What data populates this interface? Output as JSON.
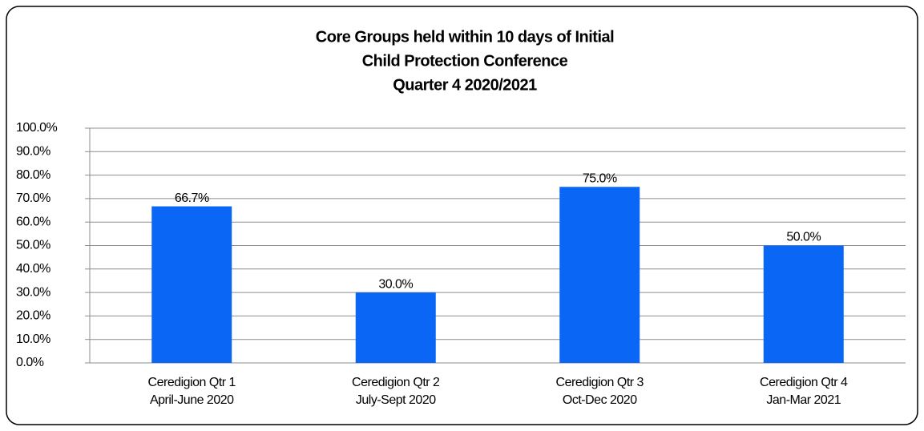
{
  "chart_data": {
    "type": "bar",
    "title": [
      "Core Groups held within 10 days of Initial",
      "Child Protection Conference",
      "Quarter 4 2020/2021"
    ],
    "categories": [
      [
        "Ceredigion Qtr 1",
        "April-June 2020"
      ],
      [
        "Ceredigion Qtr 2",
        "July-Sept 2020"
      ],
      [
        "Ceredigion Qtr 3",
        "Oct-Dec 2020"
      ],
      [
        "Ceredigion Qtr 4",
        "Jan-Mar 2021"
      ]
    ],
    "values": [
      66.7,
      30,
      75,
      50
    ],
    "value_labels": [
      "66.7%",
      "30.0%",
      "75.0%",
      "50.0%"
    ],
    "color": "#0a66f5",
    "ylim": [
      0,
      100
    ],
    "yticks": [
      {
        "value": 0,
        "label": "0.0%"
      },
      {
        "value": 10,
        "label": "10.0%"
      },
      {
        "value": 20,
        "label": "20.0%"
      },
      {
        "value": 30,
        "label": "30.0%"
      },
      {
        "value": 40,
        "label": "40.0%"
      },
      {
        "value": 50,
        "label": "50.0%"
      },
      {
        "value": 60,
        "label": "60.0%"
      },
      {
        "value": 70,
        "label": "70.0%"
      },
      {
        "value": 80,
        "label": "80.0%"
      },
      {
        "value": 90,
        "label": "90.0%"
      },
      {
        "value": 100,
        "label": "100.0%"
      }
    ],
    "grid": true
  }
}
